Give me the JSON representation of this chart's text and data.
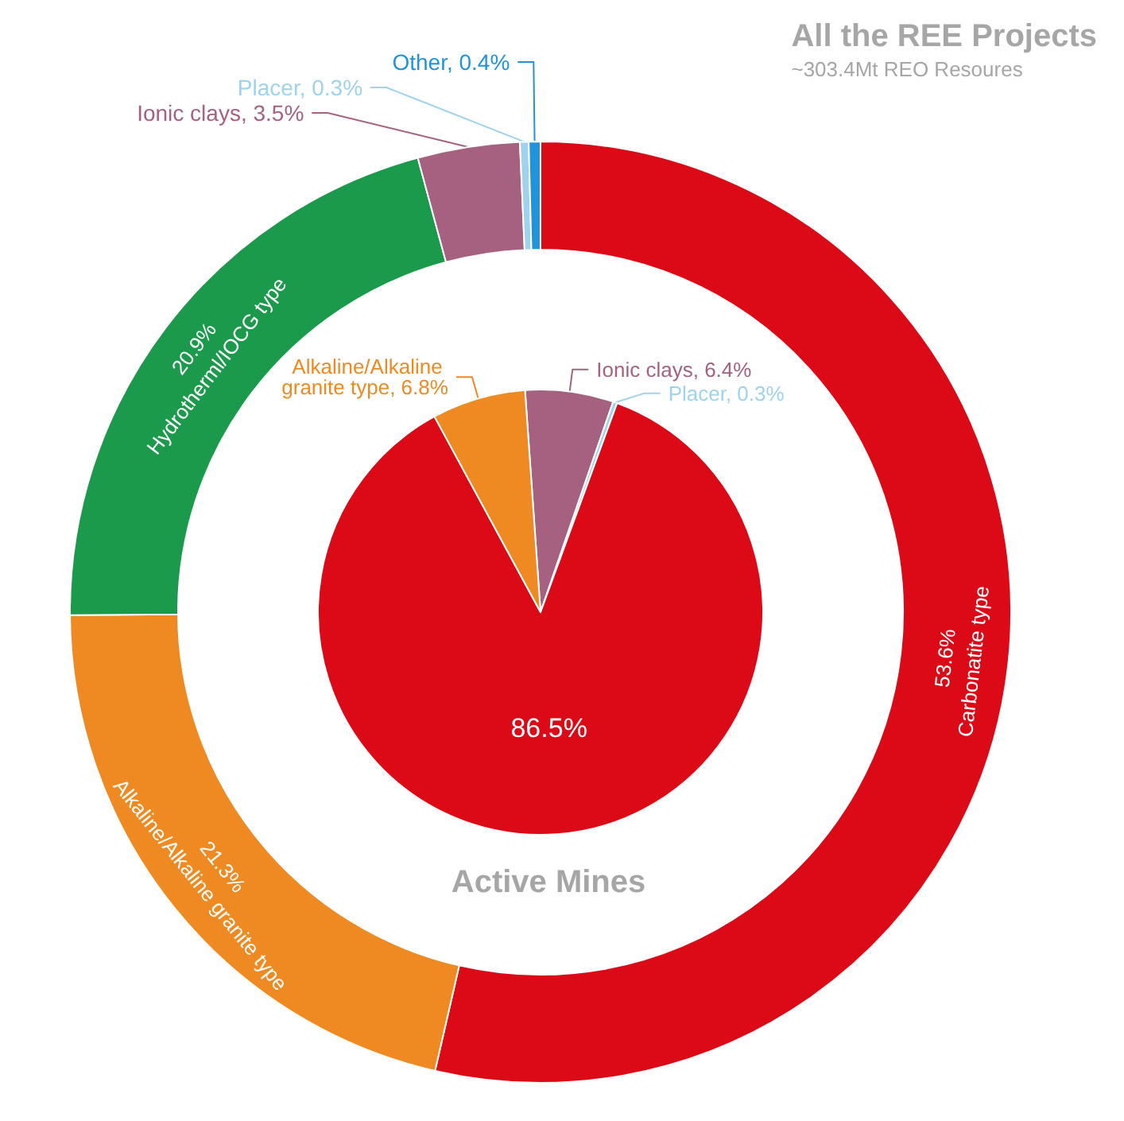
{
  "chart_data": [
    {
      "type": "donut",
      "title": "All the REE Projects",
      "subtitle": "~303.4Mt REO Resoures",
      "categories": [
        "Carbonatite type",
        "Alkaline/Alkaline granite type",
        "Hydrotherml/IOCG type",
        "Ionic clays",
        "Placer",
        "Other"
      ],
      "values": [
        53.6,
        21.3,
        20.9,
        3.5,
        0.3,
        0.4
      ],
      "value_labels": [
        "53.6%",
        "21.3%",
        "20.9%",
        "3.5%",
        "0.3%",
        "0.4%"
      ],
      "colors": [
        "#dc0a17",
        "#ef8a22",
        "#1c9a4b",
        "#a5617f",
        "#9fd2ec",
        "#1f93dc"
      ]
    },
    {
      "type": "pie",
      "title": "Active Mines",
      "categories": [
        "Ionic clays",
        "Placer",
        null,
        "Alkaline/Alkaline granite type"
      ],
      "values": [
        6.4,
        0.3,
        86.5,
        6.8
      ],
      "value_labels": [
        "6.4%",
        "0.3%",
        "86.5%",
        "6.8%"
      ],
      "colors": [
        "#a5617f",
        "#9fd2ec",
        "#dc0a17",
        "#ef8a22"
      ]
    }
  ]
}
